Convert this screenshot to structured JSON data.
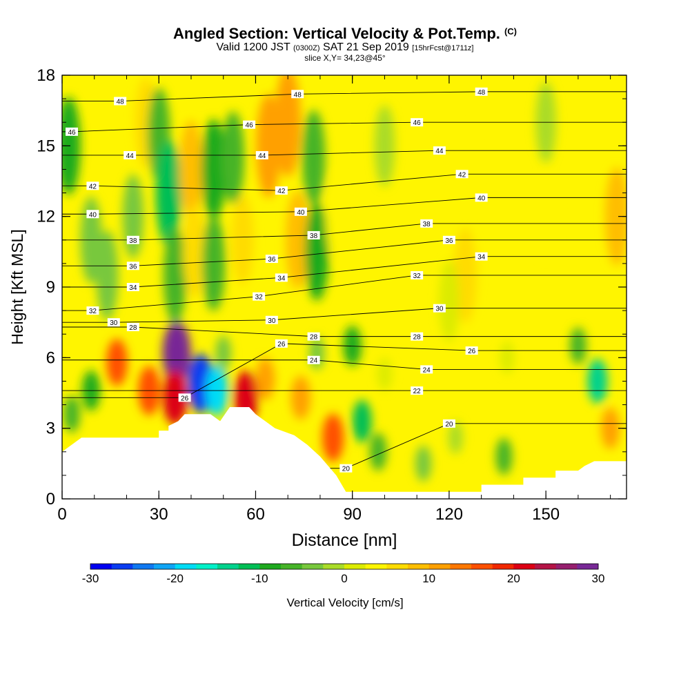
{
  "title": {
    "main": "Angled Section: Vertical Velocity & Pot.Temp.",
    "unit": "(C)",
    "valid_prefix": "Valid 1200 JST",
    "valid_zulu": "(0300Z)",
    "valid_date": "SAT 21 Sep 2019",
    "forecast": "[15hrFcst@1711z]",
    "slice": "slice X,Y= 34,23@45°"
  },
  "chart_data": {
    "type": "contour",
    "xlabel": "Distance [nm]",
    "ylabel": "Height [Kft MSL]",
    "xlim": [
      0,
      175
    ],
    "ylim": [
      0,
      18
    ],
    "x_ticks": [
      0,
      30,
      60,
      90,
      120,
      150
    ],
    "y_ticks": [
      0,
      3,
      6,
      9,
      12,
      15,
      18
    ],
    "terrain_profile": [
      [
        0,
        2.0
      ],
      [
        3,
        2.3
      ],
      [
        6,
        2.6
      ],
      [
        30,
        2.6
      ],
      [
        30,
        2.9
      ],
      [
        33,
        2.9
      ],
      [
        33,
        3.1
      ],
      [
        36,
        3.3
      ],
      [
        38,
        3.6
      ],
      [
        46,
        3.6
      ],
      [
        49,
        3.3
      ],
      [
        52,
        3.9
      ],
      [
        58,
        3.9
      ],
      [
        60,
        3.6
      ],
      [
        63,
        3.3
      ],
      [
        66,
        3.0
      ],
      [
        72,
        2.7
      ],
      [
        76,
        2.3
      ],
      [
        80,
        1.8
      ],
      [
        85,
        1.0
      ],
      [
        88,
        0.3
      ],
      [
        90,
        0.3
      ],
      [
        92,
        0.3
      ],
      [
        130,
        0.3
      ],
      [
        130,
        0.6
      ],
      [
        143,
        0.6
      ],
      [
        143,
        0.9
      ],
      [
        153,
        0.9
      ],
      [
        153,
        1.2
      ],
      [
        160,
        1.2
      ],
      [
        162,
        1.4
      ],
      [
        165,
        1.6
      ],
      [
        175,
        1.6
      ]
    ],
    "field_name": "Vertical Velocity",
    "field_background": 3,
    "vertical_velocity_features": [
      {
        "x": 2,
        "z": 15,
        "value": -8
      },
      {
        "x": 9,
        "z": 11,
        "value": -4
      },
      {
        "x": 14,
        "z": 9.5,
        "value": -5
      },
      {
        "x": 26,
        "z": 16,
        "value": 5
      },
      {
        "x": 22,
        "z": 12,
        "value": -3
      },
      {
        "x": 30,
        "z": 15.5,
        "value": -6
      },
      {
        "x": 33,
        "z": 13,
        "value": -11
      },
      {
        "x": 35,
        "z": 9.5,
        "value": -7
      },
      {
        "x": 40,
        "z": 14,
        "value": 8
      },
      {
        "x": 41,
        "z": 10.5,
        "value": 6
      },
      {
        "x": 47,
        "z": 14,
        "value": -9
      },
      {
        "x": 47,
        "z": 10,
        "value": -7
      },
      {
        "x": 53,
        "z": 14.5,
        "value": -6
      },
      {
        "x": 56,
        "z": 11,
        "value": 5
      },
      {
        "x": 64,
        "z": 15,
        "value": 10
      },
      {
        "x": 70,
        "z": 16,
        "value": 12
      },
      {
        "x": 73,
        "z": 11,
        "value": 8
      },
      {
        "x": 78,
        "z": 14.5,
        "value": -7
      },
      {
        "x": 79,
        "z": 10.5,
        "value": -8
      },
      {
        "x": 85,
        "z": 12,
        "value": 3
      },
      {
        "x": 100,
        "z": 15,
        "value": -2
      },
      {
        "x": 125,
        "z": 14,
        "value": 4
      },
      {
        "x": 125,
        "z": 9.5,
        "value": 7
      },
      {
        "x": 150,
        "z": 12,
        "value": 3
      },
      {
        "x": 150,
        "z": 16,
        "value": -2
      },
      {
        "x": 172,
        "z": 12,
        "value": 8
      },
      {
        "x": 100,
        "z": 5.3,
        "value": 2
      },
      {
        "x": 17,
        "z": 5.8,
        "value": 15
      },
      {
        "x": 27,
        "z": 4.6,
        "value": 17
      },
      {
        "x": 35.5,
        "z": 6.2,
        "value": 30
      },
      {
        "x": 35,
        "z": 4.3,
        "value": 22
      },
      {
        "x": 43,
        "z": 4.9,
        "value": -26
      },
      {
        "x": 48,
        "z": 4.6,
        "value": -18
      },
      {
        "x": 57,
        "z": 4.3,
        "value": 21
      },
      {
        "x": 63,
        "z": 5.1,
        "value": 11
      },
      {
        "x": 9,
        "z": 4.6,
        "value": -9
      },
      {
        "x": 3,
        "z": 3.6,
        "value": -6
      },
      {
        "x": 50,
        "z": 6.2,
        "value": -4
      },
      {
        "x": 74,
        "z": 4.3,
        "value": 12
      },
      {
        "x": 84,
        "z": 2.6,
        "value": 16
      },
      {
        "x": 90,
        "z": 6.5,
        "value": -9
      },
      {
        "x": 93,
        "z": 3.3,
        "value": -11
      },
      {
        "x": 98,
        "z": 2.0,
        "value": -7
      },
      {
        "x": 112,
        "z": 1.5,
        "value": -5
      },
      {
        "x": 122,
        "z": 2.6,
        "value": -2
      },
      {
        "x": 137,
        "z": 1.8,
        "value": -6
      },
      {
        "x": 166,
        "z": 5.0,
        "value": -13
      },
      {
        "x": 160,
        "z": 6.5,
        "value": -6
      },
      {
        "x": 170,
        "z": 3.0,
        "value": 10
      },
      {
        "x": 79,
        "z": 6.2,
        "value": -3
      },
      {
        "x": 138,
        "z": 6.0,
        "value": 2
      },
      {
        "x": 120,
        "z": 8.4,
        "value": 2
      }
    ],
    "isentrope_labels": [
      {
        "x": 3,
        "z": 15.6,
        "value": "46"
      },
      {
        "x": 18,
        "z": 16.9,
        "value": "48"
      },
      {
        "x": 21,
        "z": 14.6,
        "value": "44"
      },
      {
        "x": 9.5,
        "z": 13.3,
        "value": "42"
      },
      {
        "x": 9.5,
        "z": 12.1,
        "value": "40"
      },
      {
        "x": 22,
        "z": 11.0,
        "value": "38"
      },
      {
        "x": 22,
        "z": 9.9,
        "value": "36"
      },
      {
        "x": 22,
        "z": 9.0,
        "value": "34"
      },
      {
        "x": 9.5,
        "z": 8.0,
        "value": "32"
      },
      {
        "x": 16,
        "z": 7.5,
        "value": "30"
      },
      {
        "x": 22,
        "z": 7.3,
        "value": "28"
      },
      {
        "x": 38,
        "z": 4.3,
        "value": "26"
      },
      {
        "x": 73,
        "z": 17.2,
        "value": "48"
      },
      {
        "x": 58,
        "z": 15.9,
        "value": "46"
      },
      {
        "x": 62,
        "z": 14.6,
        "value": "44"
      },
      {
        "x": 68,
        "z": 13.1,
        "value": "42"
      },
      {
        "x": 74,
        "z": 12.2,
        "value": "40"
      },
      {
        "x": 78,
        "z": 11.2,
        "value": "38"
      },
      {
        "x": 65,
        "z": 10.2,
        "value": "36"
      },
      {
        "x": 68,
        "z": 9.4,
        "value": "34"
      },
      {
        "x": 61,
        "z": 8.6,
        "value": "32"
      },
      {
        "x": 65,
        "z": 7.6,
        "value": "30"
      },
      {
        "x": 68,
        "z": 6.6,
        "value": "26"
      },
      {
        "x": 78,
        "z": 6.9,
        "value": "28"
      },
      {
        "x": 78,
        "z": 5.9,
        "value": "24"
      },
      {
        "x": 88,
        "z": 1.3,
        "value": "20"
      },
      {
        "x": 130,
        "z": 17.3,
        "value": "48"
      },
      {
        "x": 110,
        "z": 16.0,
        "value": "46"
      },
      {
        "x": 117,
        "z": 14.8,
        "value": "44"
      },
      {
        "x": 124,
        "z": 13.8,
        "value": "42"
      },
      {
        "x": 130,
        "z": 12.8,
        "value": "40"
      },
      {
        "x": 113,
        "z": 11.7,
        "value": "38"
      },
      {
        "x": 120,
        "z": 11.0,
        "value": "36"
      },
      {
        "x": 130,
        "z": 10.3,
        "value": "34"
      },
      {
        "x": 110,
        "z": 9.5,
        "value": "32"
      },
      {
        "x": 117,
        "z": 8.1,
        "value": "30"
      },
      {
        "x": 110,
        "z": 6.9,
        "value": "28"
      },
      {
        "x": 127,
        "z": 6.3,
        "value": "26"
      },
      {
        "x": 113,
        "z": 5.5,
        "value": "24"
      },
      {
        "x": 110,
        "z": 4.6,
        "value": "22"
      },
      {
        "x": 120,
        "z": 3.2,
        "value": "20"
      }
    ],
    "colorbar": {
      "label": "Vertical Velocity [cm/s]",
      "range": [
        -30,
        30
      ],
      "ticks": [
        "-30",
        "-20",
        "-10",
        "0",
        "10",
        "20",
        "30"
      ],
      "colors": [
        "#0000f0",
        "#0a3cf0",
        "#0f78f0",
        "#0fa5f5",
        "#00dcf5",
        "#00f0c8",
        "#00d28c",
        "#00be55",
        "#1eaa1e",
        "#46b428",
        "#78c83c",
        "#aadc28",
        "#dceb00",
        "#fff500",
        "#ffdc00",
        "#ffbe00",
        "#ffa000",
        "#ff7800",
        "#ff5000",
        "#f02800",
        "#dc0014",
        "#b41446",
        "#961e6e",
        "#782896"
      ]
    }
  }
}
